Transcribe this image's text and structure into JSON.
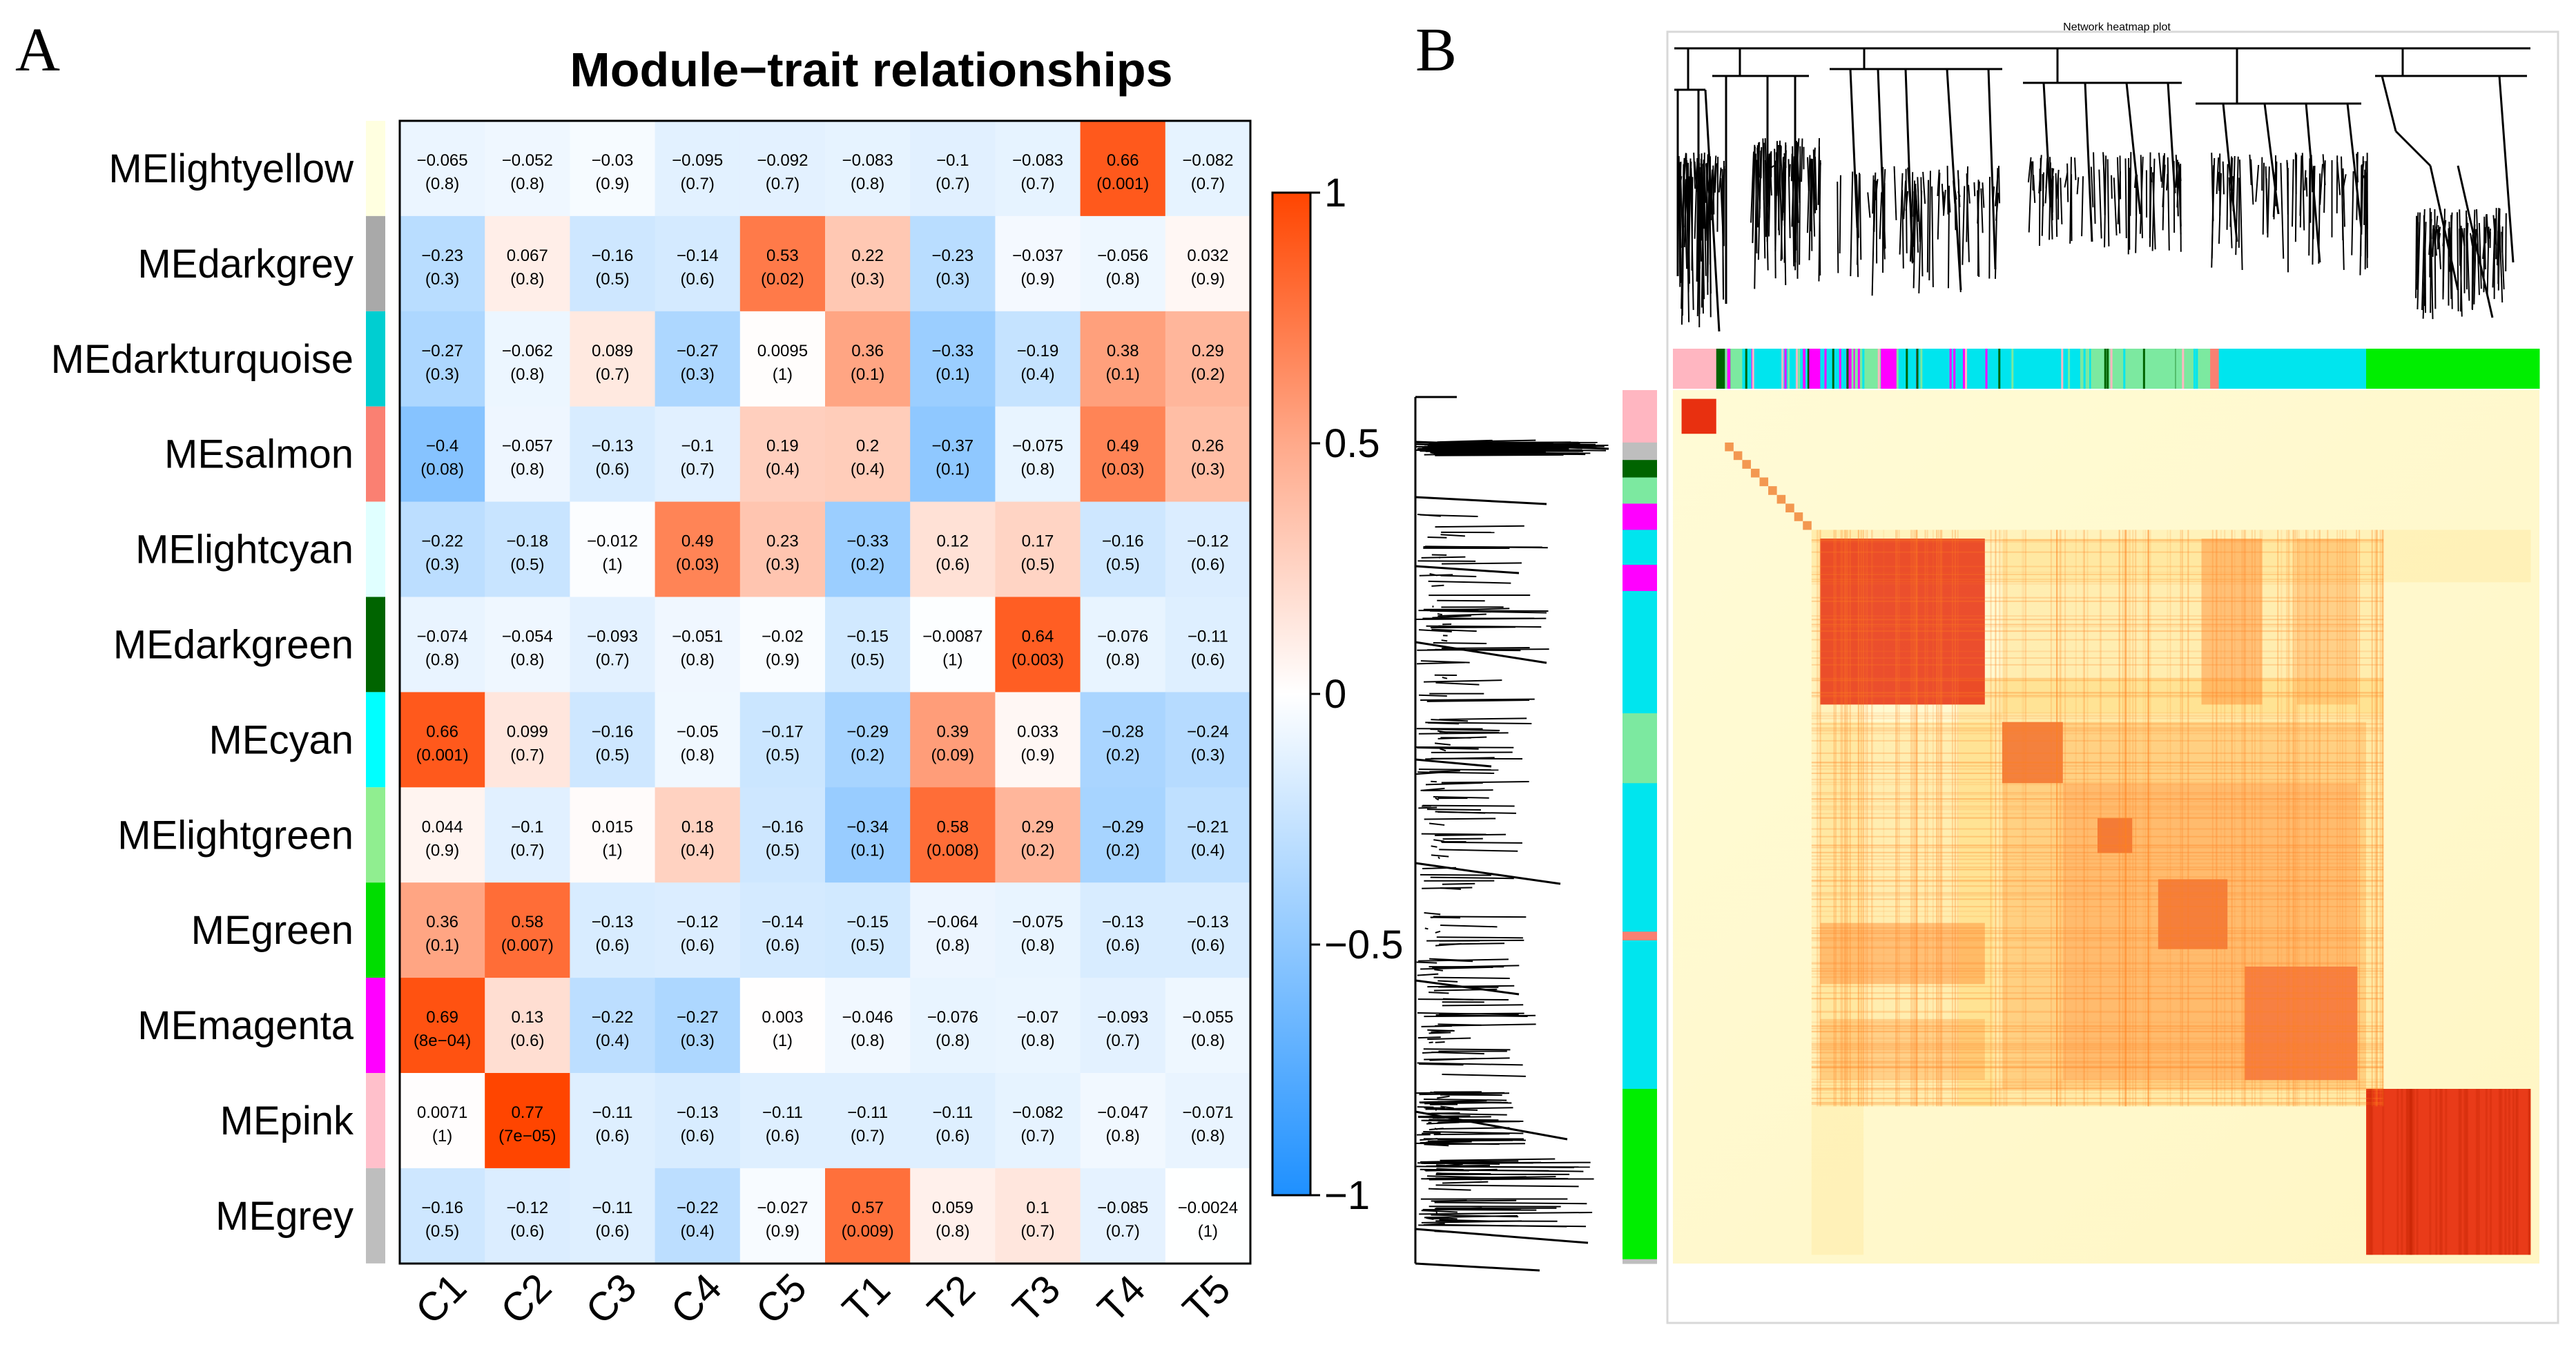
{
  "panel_a_label": "A",
  "panel_b_label": "B",
  "chart_data": [
    {
      "type": "heatmap",
      "title": "Module−trait relationships",
      "rows": [
        "MElightyellow",
        "MEdarkgrey",
        "MEdarkturquoise",
        "MEsalmon",
        "MElightcyan",
        "MEdarkgreen",
        "MEcyan",
        "MElightgreen",
        "MEgreen",
        "MEmagenta",
        "MEpink",
        "MEgrey"
      ],
      "row_colors": [
        "#ffffe0",
        "#a9a9a9",
        "#00ced1",
        "#fa8072",
        "#e0ffff",
        "#006400",
        "#00ffff",
        "#90ee90",
        "#00dd00",
        "#ff00ff",
        "#ffc0cb",
        "#bebebe"
      ],
      "columns": [
        "C1",
        "C2",
        "C3",
        "C4",
        "C5",
        "T1",
        "T2",
        "T3",
        "T4",
        "T5"
      ],
      "correlations": [
        [
          -0.065,
          -0.052,
          -0.03,
          -0.095,
          -0.092,
          -0.083,
          -0.1,
          -0.083,
          0.66,
          -0.082
        ],
        [
          -0.23,
          0.067,
          -0.16,
          -0.14,
          0.53,
          0.22,
          -0.23,
          -0.037,
          -0.056,
          0.032
        ],
        [
          -0.27,
          -0.062,
          0.089,
          -0.27,
          0.0095,
          0.36,
          -0.33,
          -0.19,
          0.38,
          0.29
        ],
        [
          -0.4,
          -0.057,
          -0.13,
          -0.1,
          0.19,
          0.2,
          -0.37,
          -0.075,
          0.49,
          0.26
        ],
        [
          -0.22,
          -0.18,
          -0.012,
          0.49,
          0.23,
          -0.33,
          0.12,
          0.17,
          -0.16,
          -0.12
        ],
        [
          -0.074,
          -0.054,
          -0.093,
          -0.051,
          -0.02,
          -0.15,
          -0.0087,
          0.64,
          -0.076,
          -0.11
        ],
        [
          0.66,
          0.099,
          -0.16,
          -0.05,
          -0.17,
          -0.29,
          0.39,
          0.033,
          -0.28,
          -0.24
        ],
        [
          0.044,
          -0.1,
          0.015,
          0.18,
          -0.16,
          -0.34,
          0.58,
          0.29,
          -0.29,
          -0.21
        ],
        [
          0.36,
          0.58,
          -0.13,
          -0.12,
          -0.14,
          -0.15,
          -0.064,
          -0.075,
          -0.13,
          -0.13
        ],
        [
          0.69,
          0.13,
          -0.22,
          -0.27,
          0.003,
          -0.046,
          -0.076,
          -0.07,
          -0.093,
          -0.055
        ],
        [
          0.0071,
          0.77,
          -0.11,
          -0.13,
          -0.11,
          -0.11,
          -0.11,
          -0.082,
          -0.047,
          -0.071
        ],
        [
          -0.16,
          -0.12,
          -0.11,
          -0.22,
          -0.027,
          0.57,
          0.059,
          0.1,
          -0.085,
          -0.0024
        ]
      ],
      "cell_labels": [
        [
          "−0.065",
          "−0.052",
          "−0.03",
          "−0.095",
          "−0.092",
          "−0.083",
          "−0.1",
          "−0.083",
          "0.66",
          "−0.082"
        ],
        [
          "−0.23",
          "0.067",
          "−0.16",
          "−0.14",
          "0.53",
          "0.22",
          "−0.23",
          "−0.037",
          "−0.056",
          "0.032"
        ],
        [
          "−0.27",
          "−0.062",
          "0.089",
          "−0.27",
          "0.0095",
          "0.36",
          "−0.33",
          "−0.19",
          "0.38",
          "0.29"
        ],
        [
          "−0.4",
          "−0.057",
          "−0.13",
          "−0.1",
          "0.19",
          "0.2",
          "−0.37",
          "−0.075",
          "0.49",
          "0.26"
        ],
        [
          "−0.22",
          "−0.18",
          "−0.012",
          "0.49",
          "0.23",
          "−0.33",
          "0.12",
          "0.17",
          "−0.16",
          "−0.12"
        ],
        [
          "−0.074",
          "−0.054",
          "−0.093",
          "−0.051",
          "−0.02",
          "−0.15",
          "−0.0087",
          "0.64",
          "−0.076",
          "−0.11"
        ],
        [
          "0.66",
          "0.099",
          "−0.16",
          "−0.05",
          "−0.17",
          "−0.29",
          "0.39",
          "0.033",
          "−0.28",
          "−0.24"
        ],
        [
          "0.044",
          "−0.1",
          "0.015",
          "0.18",
          "−0.16",
          "−0.34",
          "0.58",
          "0.29",
          "−0.29",
          "−0.21"
        ],
        [
          "0.36",
          "0.58",
          "−0.13",
          "−0.12",
          "−0.14",
          "−0.15",
          "−0.064",
          "−0.075",
          "−0.13",
          "−0.13"
        ],
        [
          "0.69",
          "0.13",
          "−0.22",
          "−0.27",
          "0.003",
          "−0.046",
          "−0.076",
          "−0.07",
          "−0.093",
          "−0.055"
        ],
        [
          "0.0071",
          "0.77",
          "−0.11",
          "−0.13",
          "−0.11",
          "−0.11",
          "−0.11",
          "−0.082",
          "−0.047",
          "−0.071"
        ],
        [
          "−0.16",
          "−0.12",
          "−0.11",
          "−0.22",
          "−0.027",
          "0.57",
          "0.059",
          "0.1",
          "−0.085",
          "−0.0024"
        ]
      ],
      "pvalues": [
        [
          "(0.8)",
          "(0.8)",
          "(0.9)",
          "(0.7)",
          "(0.7)",
          "(0.8)",
          "(0.7)",
          "(0.7)",
          "(0.001)",
          "(0.7)"
        ],
        [
          "(0.3)",
          "(0.8)",
          "(0.5)",
          "(0.6)",
          "(0.02)",
          "(0.3)",
          "(0.3)",
          "(0.9)",
          "(0.8)",
          "(0.9)"
        ],
        [
          "(0.3)",
          "(0.8)",
          "(0.7)",
          "(0.3)",
          "(1)",
          "(0.1)",
          "(0.1)",
          "(0.4)",
          "(0.1)",
          "(0.2)"
        ],
        [
          "(0.08)",
          "(0.8)",
          "(0.6)",
          "(0.7)",
          "(0.4)",
          "(0.4)",
          "(0.1)",
          "(0.8)",
          "(0.03)",
          "(0.3)"
        ],
        [
          "(0.3)",
          "(0.5)",
          "(1)",
          "(0.03)",
          "(0.3)",
          "(0.2)",
          "(0.6)",
          "(0.5)",
          "(0.5)",
          "(0.6)"
        ],
        [
          "(0.8)",
          "(0.8)",
          "(0.7)",
          "(0.8)",
          "(0.9)",
          "(0.5)",
          "(1)",
          "(0.003)",
          "(0.8)",
          "(0.6)"
        ],
        [
          "(0.001)",
          "(0.7)",
          "(0.5)",
          "(0.8)",
          "(0.5)",
          "(0.2)",
          "(0.09)",
          "(0.9)",
          "(0.2)",
          "(0.3)"
        ],
        [
          "(0.9)",
          "(0.7)",
          "(1)",
          "(0.4)",
          "(0.5)",
          "(0.1)",
          "(0.008)",
          "(0.2)",
          "(0.2)",
          "(0.4)"
        ],
        [
          "(0.1)",
          "(0.007)",
          "(0.6)",
          "(0.6)",
          "(0.6)",
          "(0.5)",
          "(0.8)",
          "(0.8)",
          "(0.6)",
          "(0.6)"
        ],
        [
          "(8e−04)",
          "(0.6)",
          "(0.4)",
          "(0.3)",
          "(1)",
          "(0.8)",
          "(0.8)",
          "(0.8)",
          "(0.7)",
          "(0.8)"
        ],
        [
          "(1)",
          "(7e−05)",
          "(0.6)",
          "(0.6)",
          "(0.6)",
          "(0.7)",
          "(0.6)",
          "(0.7)",
          "(0.8)",
          "(0.8)"
        ],
        [
          "(0.5)",
          "(0.6)",
          "(0.6)",
          "(0.4)",
          "(0.9)",
          "(0.009)",
          "(0.8)",
          "(0.7)",
          "(0.7)",
          "(1)"
        ]
      ],
      "colorbar": {
        "range": [
          -1,
          1
        ],
        "ticks": [
          1,
          0.5,
          0,
          -0.5,
          -1
        ],
        "tick_labels": [
          "1",
          "0.5",
          "0",
          "−0.5",
          "−1"
        ],
        "colors": {
          "low": "#1e90ff",
          "mid": "#ffffff",
          "high": "#ff4500"
        }
      }
    },
    {
      "type": "heatmap",
      "title": "Network heatmap plot",
      "description_modules_order": [
        "pink",
        "darkgreen",
        "magenta",
        "turquoise",
        "lightgreen",
        "salmon",
        "turquoise",
        "green"
      ],
      "module_colors": {
        "pink": "#ffb6c1",
        "darkgreen": "#006400",
        "magenta": "#ff00ff",
        "turquoise": "#00e5ee",
        "lightgreen": "#7ce9a0",
        "salmon": "#fa8072",
        "green": "#00ee00",
        "grey": "#bebebe"
      },
      "heat_colors": {
        "background": "#fffbd0",
        "mid": "#ffd060",
        "high": "#e83010"
      }
    }
  ]
}
